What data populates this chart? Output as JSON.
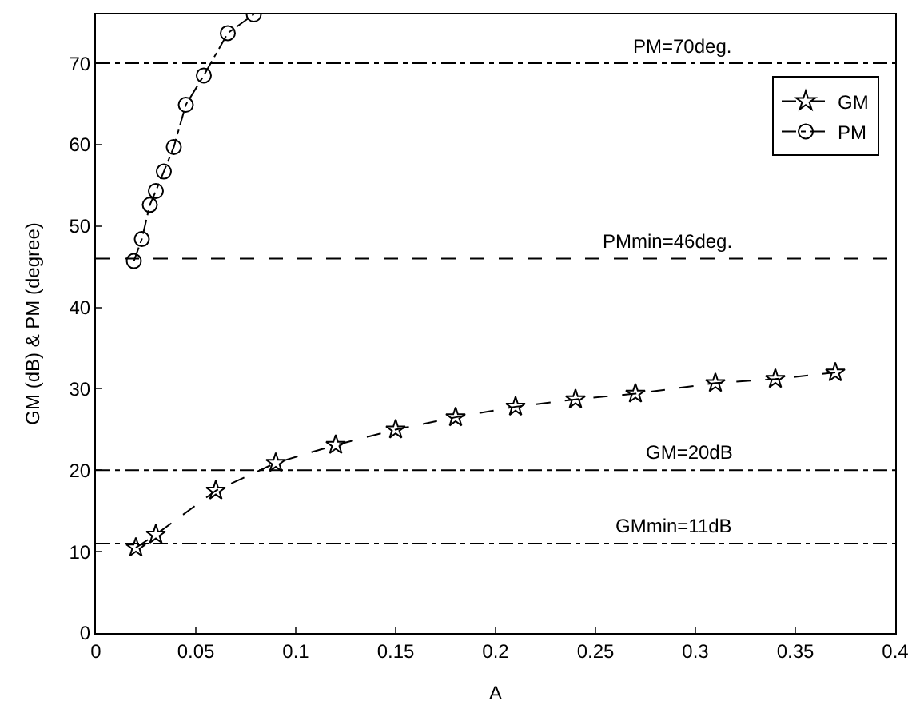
{
  "chart_data": {
    "type": "line",
    "xlabel": "A",
    "ylabel": "GM (dB) & PM (degree)",
    "xlim": [
      0,
      0.4
    ],
    "xticks": [
      0,
      0.05,
      0.1,
      0.15,
      0.2,
      0.25,
      0.3,
      0.35,
      0.4
    ],
    "ylim": [
      0,
      76
    ],
    "yticks": [
      0,
      10,
      20,
      30,
      40,
      50,
      60,
      70
    ],
    "series": [
      {
        "name": "GM",
        "color": "#000000",
        "marker": "star",
        "line_style": "dashed",
        "x": [
          0.02,
          0.03,
          0.06,
          0.09,
          0.12,
          0.15,
          0.18,
          0.21,
          0.24,
          0.27,
          0.31,
          0.34,
          0.37
        ],
        "values": [
          10.5,
          12.1,
          17.5,
          20.9,
          23.1,
          25.0,
          26.5,
          27.8,
          28.7,
          29.4,
          30.7,
          31.2,
          32.0
        ]
      },
      {
        "name": "PM",
        "color": "#000000",
        "marker": "circle",
        "line_style": "dotted",
        "x": [
          0.019,
          0.023,
          0.027,
          0.03,
          0.034,
          0.039,
          0.045,
          0.054,
          0.066,
          0.079
        ],
        "values": [
          45.7,
          48.4,
          52.6,
          54.3,
          56.7,
          59.7,
          64.9,
          68.5,
          73.7,
          76.0
        ]
      }
    ],
    "ref_lines": [
      {
        "axis": "y",
        "value": 70,
        "label": "PM=70deg.",
        "line_style": "dotted",
        "color": "#000000"
      },
      {
        "axis": "y",
        "value": 46,
        "label": "PMmin=46deg.",
        "line_style": "dashed",
        "color": "#000000"
      },
      {
        "axis": "y",
        "value": 20,
        "label": "GM=20dB",
        "line_style": "dotted",
        "color": "#000000"
      },
      {
        "axis": "y",
        "value": 11,
        "label": "GMmin=11dB",
        "line_style": "dotted",
        "color": "#000000"
      }
    ],
    "legend": "top right"
  }
}
